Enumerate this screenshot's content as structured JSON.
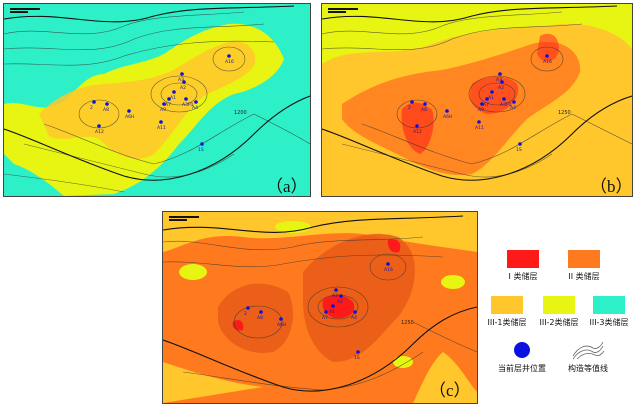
{
  "colors": {
    "class_I": "#ff1a1a",
    "class_II": "#ff7a1e",
    "class_III1": "#ffc72c",
    "class_III2": "#e8f512",
    "class_III3": "#2df0c8",
    "well": "#0b12e0",
    "contour": "#333333"
  },
  "panels": [
    {
      "id": "a",
      "label": "（a）"
    },
    {
      "id": "b",
      "label": "（b）"
    },
    {
      "id": "c",
      "label": "（c）"
    }
  ],
  "wells": {
    "panel_a": [
      "A16",
      "A2",
      "A3",
      "A1",
      "A7",
      "A3P1",
      "A4",
      "A6H",
      "A9",
      "A12",
      "A11",
      "2",
      "A8",
      "1S"
    ],
    "panel_b": [
      "A16",
      "A2",
      "A3",
      "A1",
      "A7",
      "A3P1",
      "A4",
      "A6H",
      "A9",
      "A12",
      "A11",
      "2",
      "A8",
      "1S"
    ],
    "panel_c": [
      "A16",
      "A3",
      "A2",
      "A1",
      "A7",
      "A4",
      "2",
      "A8",
      "A6H",
      "1S"
    ]
  },
  "contour_values": [
    "1200",
    "1250",
    "1250",
    "1200",
    "1250"
  ],
  "legend": {
    "class_I": "I 类储层",
    "class_II": "II 类储层",
    "class_III1": "III-1类储层",
    "class_III2": "III-2类储层",
    "class_III3": "III-3类储层",
    "well": "当前层井位置",
    "contour": "构造等值线"
  }
}
